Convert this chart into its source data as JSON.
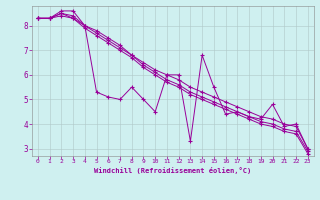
{
  "xlabel": "Windchill (Refroidissement éolien,°C)",
  "bg_color": "#cff0f0",
  "line_color": "#990099",
  "grid_color": "#b0c8c8",
  "ylim": [
    2.7,
    8.8
  ],
  "xlim": [
    -0.5,
    23.5
  ],
  "yticks": [
    3,
    4,
    5,
    6,
    7,
    8
  ],
  "xticks": [
    0,
    1,
    2,
    3,
    4,
    5,
    6,
    7,
    8,
    9,
    10,
    11,
    12,
    13,
    14,
    15,
    16,
    17,
    18,
    19,
    20,
    21,
    22,
    23
  ],
  "line1_x": [
    0,
    1,
    2,
    3,
    4,
    5,
    6,
    7,
    8,
    9,
    10,
    11,
    12,
    13,
    14,
    15,
    16,
    17,
    18,
    19,
    20,
    21,
    22,
    23
  ],
  "line1_y": [
    8.3,
    8.3,
    8.5,
    8.3,
    8.0,
    5.3,
    5.1,
    5.0,
    5.5,
    5.0,
    4.5,
    6.0,
    6.0,
    3.3,
    6.8,
    5.5,
    4.4,
    4.5,
    4.3,
    4.2,
    4.8,
    3.9,
    4.0,
    3.0
  ],
  "line2_x": [
    0,
    1,
    2,
    3,
    4,
    5,
    6,
    7,
    8,
    9,
    10,
    11,
    12,
    13,
    14,
    15,
    16,
    17,
    18,
    19,
    20,
    21,
    22,
    23
  ],
  "line2_y": [
    8.3,
    8.3,
    8.6,
    8.6,
    8.0,
    7.8,
    7.5,
    7.2,
    6.8,
    6.5,
    6.2,
    6.0,
    5.8,
    5.5,
    5.3,
    5.1,
    4.9,
    4.7,
    4.5,
    4.3,
    4.2,
    4.0,
    3.9,
    3.0
  ],
  "line3_x": [
    0,
    1,
    2,
    3,
    4,
    5,
    6,
    7,
    8,
    9,
    10,
    11,
    12,
    13,
    14,
    15,
    16,
    17,
    18,
    19,
    20,
    21,
    22,
    23
  ],
  "line3_y": [
    8.3,
    8.3,
    8.5,
    8.4,
    8.0,
    7.7,
    7.4,
    7.1,
    6.8,
    6.4,
    6.1,
    5.8,
    5.6,
    5.3,
    5.1,
    4.9,
    4.7,
    4.5,
    4.3,
    4.1,
    4.0,
    3.8,
    3.7,
    2.9
  ],
  "line4_x": [
    0,
    1,
    2,
    3,
    4,
    5,
    6,
    7,
    8,
    9,
    10,
    11,
    12,
    13,
    14,
    15,
    16,
    17,
    18,
    19,
    20,
    21,
    22,
    23
  ],
  "line4_y": [
    8.3,
    8.3,
    8.4,
    8.3,
    7.9,
    7.6,
    7.3,
    7.0,
    6.7,
    6.3,
    6.0,
    5.7,
    5.5,
    5.2,
    5.0,
    4.8,
    4.6,
    4.4,
    4.2,
    4.0,
    3.9,
    3.7,
    3.6,
    2.8
  ]
}
